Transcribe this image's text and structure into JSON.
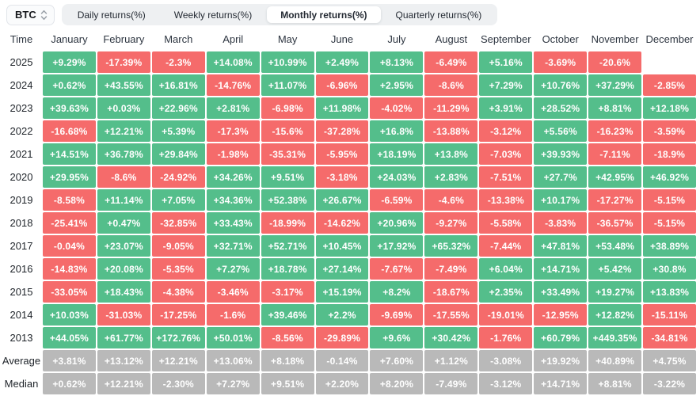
{
  "toolbar": {
    "symbol_select": {
      "value": "BTC"
    },
    "tabs": [
      {
        "label": "Daily returns(%)",
        "active": false
      },
      {
        "label": "Weekly returns(%)",
        "active": false
      },
      {
        "label": "Monthly returns(%)",
        "active": true
      },
      {
        "label": "Quarterly returns(%)",
        "active": false
      }
    ]
  },
  "colors": {
    "positive": "#54be8b",
    "negative": "#f56b6b",
    "summary": "#b9b9b9"
  },
  "table": {
    "time_header": "Time",
    "months": [
      "January",
      "February",
      "March",
      "April",
      "May",
      "June",
      "July",
      "August",
      "September",
      "October",
      "November",
      "December"
    ],
    "rows": [
      {
        "label": "2025",
        "type": "year",
        "values": [
          "+9.29%",
          "-17.39%",
          "-2.3%",
          "+14.08%",
          "+10.99%",
          "+2.49%",
          "+8.13%",
          "-6.49%",
          "+5.16%",
          "-3.69%",
          "-20.6%",
          null
        ]
      },
      {
        "label": "2024",
        "type": "year",
        "values": [
          "+0.62%",
          "+43.55%",
          "+16.81%",
          "-14.76%",
          "+11.07%",
          "-6.96%",
          "+2.95%",
          "-8.6%",
          "+7.29%",
          "+10.76%",
          "+37.29%",
          "-2.85%"
        ]
      },
      {
        "label": "2023",
        "type": "year",
        "values": [
          "+39.63%",
          "+0.03%",
          "+22.96%",
          "+2.81%",
          "-6.98%",
          "+11.98%",
          "-4.02%",
          "-11.29%",
          "+3.91%",
          "+28.52%",
          "+8.81%",
          "+12.18%"
        ]
      },
      {
        "label": "2022",
        "type": "year",
        "values": [
          "-16.68%",
          "+12.21%",
          "+5.39%",
          "-17.3%",
          "-15.6%",
          "-37.28%",
          "+16.8%",
          "-13.88%",
          "-3.12%",
          "+5.56%",
          "-16.23%",
          "-3.59%"
        ]
      },
      {
        "label": "2021",
        "type": "year",
        "values": [
          "+14.51%",
          "+36.78%",
          "+29.84%",
          "-1.98%",
          "-35.31%",
          "-5.95%",
          "+18.19%",
          "+13.8%",
          "-7.03%",
          "+39.93%",
          "-7.11%",
          "-18.9%"
        ]
      },
      {
        "label": "2020",
        "type": "year",
        "values": [
          "+29.95%",
          "-8.6%",
          "-24.92%",
          "+34.26%",
          "+9.51%",
          "-3.18%",
          "+24.03%",
          "+2.83%",
          "-7.51%",
          "+27.7%",
          "+42.95%",
          "+46.92%"
        ]
      },
      {
        "label": "2019",
        "type": "year",
        "values": [
          "-8.58%",
          "+11.14%",
          "+7.05%",
          "+34.36%",
          "+52.38%",
          "+26.67%",
          "-6.59%",
          "-4.6%",
          "-13.38%",
          "+10.17%",
          "-17.27%",
          "-5.15%"
        ]
      },
      {
        "label": "2018",
        "type": "year",
        "values": [
          "-25.41%",
          "+0.47%",
          "-32.85%",
          "+33.43%",
          "-18.99%",
          "-14.62%",
          "+20.96%",
          "-9.27%",
          "-5.58%",
          "-3.83%",
          "-36.57%",
          "-5.15%"
        ]
      },
      {
        "label": "2017",
        "type": "year",
        "values": [
          "-0.04%",
          "+23.07%",
          "-9.05%",
          "+32.71%",
          "+52.71%",
          "+10.45%",
          "+17.92%",
          "+65.32%",
          "-7.44%",
          "+47.81%",
          "+53.48%",
          "+38.89%"
        ]
      },
      {
        "label": "2016",
        "type": "year",
        "values": [
          "-14.83%",
          "+20.08%",
          "-5.35%",
          "+7.27%",
          "+18.78%",
          "+27.14%",
          "-7.67%",
          "-7.49%",
          "+6.04%",
          "+14.71%",
          "+5.42%",
          "+30.8%"
        ]
      },
      {
        "label": "2015",
        "type": "year",
        "values": [
          "-33.05%",
          "+18.43%",
          "-4.38%",
          "-3.46%",
          "-3.17%",
          "+15.19%",
          "+8.2%",
          "-18.67%",
          "+2.35%",
          "+33.49%",
          "+19.27%",
          "+13.83%"
        ]
      },
      {
        "label": "2014",
        "type": "year",
        "values": [
          "+10.03%",
          "-31.03%",
          "-17.25%",
          "-1.6%",
          "+39.46%",
          "+2.2%",
          "-9.69%",
          "-17.55%",
          "-19.01%",
          "-12.95%",
          "+12.82%",
          "-15.11%"
        ]
      },
      {
        "label": "2013",
        "type": "year",
        "values": [
          "+44.05%",
          "+61.77%",
          "+172.76%",
          "+50.01%",
          "-8.56%",
          "-29.89%",
          "+9.6%",
          "+30.42%",
          "-1.76%",
          "+60.79%",
          "+449.35%",
          "-34.81%"
        ]
      },
      {
        "label": "Average",
        "type": "summary",
        "values": [
          "+3.81%",
          "+13.12%",
          "+12.21%",
          "+13.06%",
          "+8.18%",
          "-0.14%",
          "+7.60%",
          "+1.12%",
          "-3.08%",
          "+19.92%",
          "+40.89%",
          "+4.75%"
        ]
      },
      {
        "label": "Median",
        "type": "summary",
        "values": [
          "+0.62%",
          "+12.21%",
          "-2.30%",
          "+7.27%",
          "+9.51%",
          "+2.20%",
          "+8.20%",
          "-7.49%",
          "-3.12%",
          "+14.71%",
          "+8.81%",
          "-3.22%"
        ]
      }
    ]
  },
  "chart_data": {
    "type": "table",
    "title": "BTC Monthly returns(%)",
    "categories": [
      "January",
      "February",
      "March",
      "April",
      "May",
      "June",
      "July",
      "August",
      "September",
      "October",
      "November",
      "December"
    ],
    "series": [
      {
        "name": "2025",
        "values": [
          9.29,
          -17.39,
          -2.3,
          14.08,
          10.99,
          2.49,
          8.13,
          -6.49,
          5.16,
          -3.69,
          -20.6,
          null
        ]
      },
      {
        "name": "2024",
        "values": [
          0.62,
          43.55,
          16.81,
          -14.76,
          11.07,
          -6.96,
          2.95,
          -8.6,
          7.29,
          10.76,
          37.29,
          -2.85
        ]
      },
      {
        "name": "2023",
        "values": [
          39.63,
          0.03,
          22.96,
          2.81,
          -6.98,
          11.98,
          -4.02,
          -11.29,
          3.91,
          28.52,
          8.81,
          12.18
        ]
      },
      {
        "name": "2022",
        "values": [
          -16.68,
          12.21,
          5.39,
          -17.3,
          -15.6,
          -37.28,
          16.8,
          -13.88,
          -3.12,
          5.56,
          -16.23,
          -3.59
        ]
      },
      {
        "name": "2021",
        "values": [
          14.51,
          36.78,
          29.84,
          -1.98,
          -35.31,
          -5.95,
          18.19,
          13.8,
          -7.03,
          39.93,
          -7.11,
          -18.9
        ]
      },
      {
        "name": "2020",
        "values": [
          29.95,
          -8.6,
          -24.92,
          34.26,
          9.51,
          -3.18,
          24.03,
          2.83,
          -7.51,
          27.7,
          42.95,
          46.92
        ]
      },
      {
        "name": "2019",
        "values": [
          -8.58,
          11.14,
          7.05,
          34.36,
          52.38,
          26.67,
          -6.59,
          -4.6,
          -13.38,
          10.17,
          -17.27,
          -5.15
        ]
      },
      {
        "name": "2018",
        "values": [
          -25.41,
          0.47,
          -32.85,
          33.43,
          -18.99,
          -14.62,
          20.96,
          -9.27,
          -5.58,
          -3.83,
          -36.57,
          -5.15
        ]
      },
      {
        "name": "2017",
        "values": [
          -0.04,
          23.07,
          -9.05,
          32.71,
          52.71,
          10.45,
          17.92,
          65.32,
          -7.44,
          47.81,
          53.48,
          38.89
        ]
      },
      {
        "name": "2016",
        "values": [
          -14.83,
          20.08,
          -5.35,
          7.27,
          18.78,
          27.14,
          -7.67,
          -7.49,
          6.04,
          14.71,
          5.42,
          30.8
        ]
      },
      {
        "name": "2015",
        "values": [
          -33.05,
          18.43,
          -4.38,
          -3.46,
          -3.17,
          15.19,
          8.2,
          -18.67,
          2.35,
          33.49,
          19.27,
          13.83
        ]
      },
      {
        "name": "2014",
        "values": [
          10.03,
          -31.03,
          -17.25,
          -1.6,
          39.46,
          2.2,
          -9.69,
          -17.55,
          -19.01,
          -12.95,
          12.82,
          -15.11
        ]
      },
      {
        "name": "2013",
        "values": [
          44.05,
          61.77,
          172.76,
          50.01,
          -8.56,
          -29.89,
          9.6,
          30.42,
          -1.76,
          60.79,
          449.35,
          -34.81
        ]
      },
      {
        "name": "Average",
        "values": [
          3.81,
          13.12,
          12.21,
          13.06,
          8.18,
          -0.14,
          7.6,
          1.12,
          -3.08,
          19.92,
          40.89,
          4.75
        ]
      },
      {
        "name": "Median",
        "values": [
          0.62,
          12.21,
          -2.3,
          7.27,
          9.51,
          2.2,
          8.2,
          -7.49,
          -3.12,
          14.71,
          8.81,
          -3.22
        ]
      }
    ]
  }
}
